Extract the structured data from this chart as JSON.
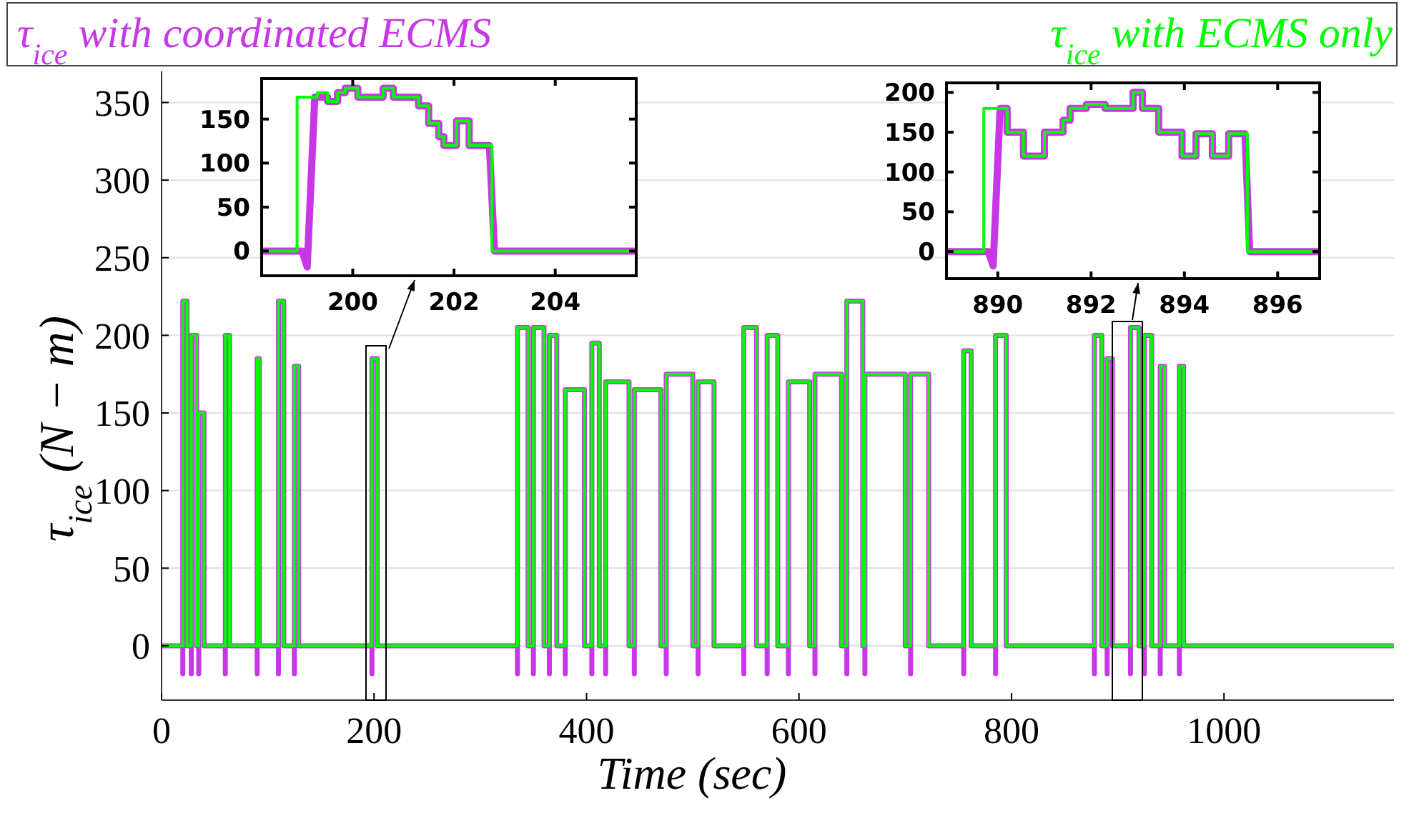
{
  "chart_data": [
    {
      "type": "line",
      "xlabel": "Time (sec)",
      "ylabel": "τ$_{ice}$ (N − m)",
      "legend": "top",
      "grid": "y",
      "xlim": [
        0,
        1160
      ],
      "xticks": [
        0,
        200,
        400,
        600,
        800,
        1000
      ],
      "ylim": [
        -35,
        370
      ],
      "yticks": [
        0,
        50,
        100,
        150,
        200,
        250,
        300,
        350
      ],
      "series": [
        {
          "name": "τ$_{ice}$ with coordinated ECMS",
          "color": "#c837e6",
          "x": [
            0,
            20,
            20,
            20,
            24,
            24,
            28,
            28,
            28,
            33,
            33,
            35,
            35,
            35,
            40,
            40,
            60,
            60,
            60,
            64,
            64,
            90,
            90,
            90,
            92,
            92,
            110,
            110,
            110,
            115,
            115,
            125,
            125,
            125,
            129,
            129,
            198,
            198,
            198,
            203,
            203,
            335,
            335,
            335,
            345,
            345,
            350,
            350,
            350,
            360,
            360,
            365,
            365,
            365,
            372,
            372,
            380,
            380,
            380,
            398,
            398,
            405,
            405,
            405,
            412,
            412,
            418,
            418,
            418,
            440,
            440,
            445,
            445,
            445,
            470,
            470,
            475,
            475,
            475,
            500,
            500,
            505,
            505,
            505,
            520,
            520,
            548,
            548,
            548,
            560,
            560,
            570,
            570,
            570,
            580,
            580,
            590,
            590,
            590,
            610,
            610,
            615,
            615,
            615,
            640,
            640,
            645,
            645,
            645,
            660,
            660,
            662,
            662,
            662,
            700,
            700,
            705,
            705,
            705,
            722,
            722,
            755,
            755,
            755,
            762,
            762,
            785,
            785,
            785,
            795,
            795,
            878,
            878,
            878,
            885,
            885,
            890,
            890,
            890,
            895,
            895,
            912,
            912,
            912,
            920,
            920,
            925,
            925,
            925,
            932,
            932,
            940,
            940,
            940,
            944,
            944,
            958,
            958,
            958,
            962,
            962,
            1160
          ],
          "values": [
            0,
            0,
            -18,
            222,
            222,
            0,
            0,
            -18,
            200,
            200,
            0,
            0,
            -18,
            150,
            150,
            0,
            0,
            -18,
            200,
            200,
            0,
            0,
            -18,
            185,
            185,
            0,
            0,
            -18,
            222,
            222,
            0,
            0,
            -18,
            180,
            180,
            0,
            0,
            -18,
            185,
            185,
            0,
            0,
            -18,
            205,
            205,
            0,
            0,
            -18,
            205,
            205,
            0,
            0,
            -18,
            200,
            200,
            0,
            0,
            -18,
            165,
            165,
            0,
            0,
            -18,
            195,
            195,
            0,
            0,
            -18,
            170,
            170,
            0,
            0,
            -18,
            165,
            165,
            0,
            0,
            -18,
            175,
            175,
            0,
            0,
            -18,
            170,
            170,
            0,
            0,
            -18,
            205,
            205,
            0,
            0,
            -18,
            200,
            200,
            0,
            0,
            -18,
            170,
            170,
            0,
            0,
            -18,
            175,
            175,
            0,
            0,
            -18,
            222,
            222,
            0,
            0,
            -18,
            175,
            175,
            0,
            0,
            -18,
            175,
            175,
            0,
            0,
            -18,
            190,
            190,
            0,
            0,
            -18,
            200,
            200,
            0,
            0,
            -18,
            200,
            200,
            0,
            0,
            -18,
            185,
            185,
            0,
            0,
            -18,
            205,
            205,
            0,
            0,
            -18,
            200,
            200,
            0,
            0,
            -18,
            180,
            180,
            0,
            0,
            -18,
            180,
            180,
            0,
            0
          ]
        },
        {
          "name": "τ$_{ice}$ with ECMS only",
          "color": "#00ff00",
          "x": [
            0,
            20,
            20,
            24,
            24,
            28,
            28,
            33,
            33,
            35,
            35,
            40,
            40,
            60,
            60,
            64,
            64,
            90,
            90,
            92,
            92,
            110,
            110,
            115,
            115,
            125,
            125,
            129,
            129,
            198,
            198,
            203,
            203,
            335,
            335,
            345,
            345,
            350,
            350,
            360,
            360,
            365,
            365,
            372,
            372,
            380,
            380,
            398,
            398,
            405,
            405,
            412,
            412,
            418,
            418,
            440,
            440,
            445,
            445,
            470,
            470,
            475,
            475,
            500,
            500,
            505,
            505,
            520,
            520,
            548,
            548,
            560,
            560,
            570,
            570,
            580,
            580,
            590,
            590,
            610,
            610,
            615,
            615,
            640,
            640,
            645,
            645,
            660,
            660,
            662,
            662,
            700,
            700,
            705,
            705,
            722,
            722,
            755,
            755,
            762,
            762,
            785,
            785,
            795,
            795,
            878,
            878,
            885,
            885,
            890,
            890,
            895,
            895,
            912,
            912,
            920,
            920,
            925,
            925,
            932,
            932,
            940,
            940,
            944,
            944,
            958,
            958,
            962,
            962,
            1160
          ],
          "values": [
            0,
            0,
            222,
            222,
            0,
            0,
            200,
            200,
            0,
            0,
            150,
            150,
            0,
            0,
            200,
            200,
            0,
            0,
            185,
            185,
            0,
            0,
            222,
            222,
            0,
            0,
            180,
            180,
            0,
            0,
            185,
            185,
            0,
            0,
            205,
            205,
            0,
            0,
            205,
            205,
            0,
            0,
            200,
            200,
            0,
            0,
            165,
            165,
            0,
            0,
            195,
            195,
            0,
            0,
            170,
            170,
            0,
            0,
            165,
            165,
            0,
            0,
            175,
            175,
            0,
            0,
            170,
            170,
            0,
            0,
            205,
            205,
            0,
            0,
            200,
            200,
            0,
            0,
            170,
            170,
            0,
            0,
            175,
            175,
            0,
            0,
            222,
            222,
            0,
            0,
            175,
            175,
            0,
            0,
            175,
            175,
            0,
            0,
            190,
            190,
            0,
            0,
            200,
            200,
            0,
            0,
            200,
            200,
            0,
            0,
            185,
            185,
            0,
            0,
            205,
            205,
            0,
            0,
            200,
            200,
            0,
            0,
            180,
            180,
            0,
            0,
            180,
            180,
            0,
            0
          ]
        }
      ]
    },
    {
      "type": "line",
      "xlim": [
        198.2,
        205.6
      ],
      "xticks": [
        200,
        202,
        204
      ],
      "ylim": [
        -28,
        196
      ],
      "yticks": [
        0,
        50,
        100,
        150
      ],
      "series": [
        {
          "color": "#c837e6",
          "x": [
            198.2,
            199.0,
            199.1,
            199.25,
            199.5,
            199.5,
            199.7,
            199.7,
            199.85,
            199.85,
            200.1,
            200.1,
            200.6,
            200.6,
            200.8,
            200.8,
            201.3,
            201.3,
            201.5,
            201.5,
            201.7,
            201.7,
            201.8,
            201.8,
            202.05,
            202.05,
            202.3,
            202.3,
            202.7,
            202.8,
            205.6
          ],
          "values": [
            0,
            0,
            -18,
            175,
            175,
            170,
            170,
            180,
            180,
            185,
            185,
            175,
            175,
            185,
            185,
            175,
            175,
            165,
            165,
            145,
            145,
            130,
            130,
            120,
            120,
            148,
            148,
            120,
            120,
            0,
            0
          ]
        },
        {
          "color": "#00ff00",
          "x": [
            198.2,
            198.9,
            198.9,
            199.3,
            199.3,
            199.5,
            199.5,
            199.7,
            199.7,
            199.85,
            199.85,
            200.1,
            200.1,
            200.6,
            200.6,
            200.8,
            200.8,
            201.3,
            201.3,
            201.5,
            201.5,
            201.7,
            201.7,
            201.8,
            201.8,
            202.05,
            202.05,
            202.3,
            202.3,
            202.75,
            202.75,
            205.6
          ],
          "values": [
            0,
            0,
            175,
            175,
            180,
            180,
            170,
            170,
            180,
            180,
            185,
            185,
            175,
            175,
            185,
            185,
            175,
            175,
            165,
            165,
            145,
            145,
            130,
            130,
            120,
            120,
            148,
            148,
            120,
            120,
            0,
            0
          ]
        }
      ]
    },
    {
      "type": "line",
      "xlim": [
        888.9,
        896.9
      ],
      "xticks": [
        890,
        892,
        894,
        896
      ],
      "ylim": [
        -34,
        212
      ],
      "yticks": [
        0,
        50,
        100,
        150,
        200
      ],
      "series": [
        {
          "color": "#c837e6",
          "x": [
            888.9,
            889.8,
            889.9,
            890.05,
            890.2,
            890.2,
            890.55,
            890.55,
            891.0,
            891.0,
            891.4,
            891.4,
            891.55,
            891.55,
            891.9,
            891.9,
            892.3,
            892.3,
            892.9,
            892.9,
            893.1,
            893.1,
            893.45,
            893.45,
            893.95,
            893.95,
            894.25,
            894.25,
            894.6,
            894.6,
            894.95,
            894.95,
            895.3,
            895.4,
            896.9
          ],
          "values": [
            0,
            0,
            -18,
            180,
            180,
            150,
            150,
            120,
            120,
            150,
            150,
            165,
            165,
            180,
            180,
            185,
            185,
            180,
            180,
            200,
            200,
            180,
            180,
            150,
            150,
            120,
            120,
            148,
            148,
            120,
            120,
            148,
            148,
            0,
            0
          ]
        },
        {
          "color": "#00ff00",
          "x": [
            888.9,
            889.7,
            889.7,
            890.2,
            890.2,
            890.55,
            890.55,
            891.0,
            891.0,
            891.4,
            891.4,
            891.55,
            891.55,
            891.9,
            891.9,
            892.3,
            892.3,
            892.9,
            892.9,
            893.1,
            893.1,
            893.45,
            893.45,
            893.95,
            893.95,
            894.25,
            894.25,
            894.6,
            894.6,
            894.95,
            894.95,
            895.35,
            895.35,
            896.9
          ],
          "values": [
            0,
            0,
            180,
            180,
            150,
            150,
            120,
            120,
            150,
            150,
            165,
            165,
            180,
            180,
            185,
            185,
            180,
            180,
            200,
            200,
            180,
            180,
            150,
            150,
            120,
            120,
            148,
            148,
            120,
            120,
            148,
            148,
            0,
            0
          ]
        }
      ]
    }
  ]
}
